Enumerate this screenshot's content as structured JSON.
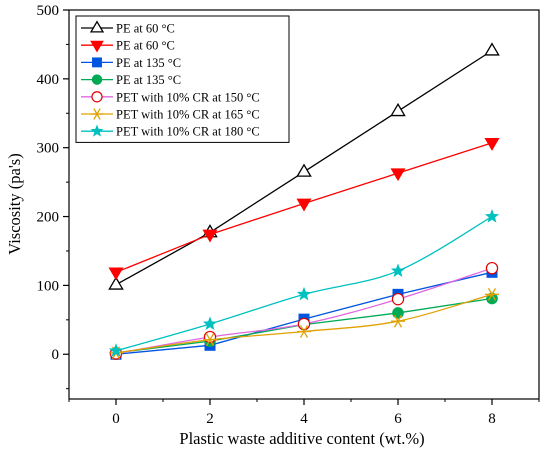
{
  "chart_data": {
    "type": "line",
    "xlabel": "Plastic waste additive content (wt.%)",
    "ylabel": "Viscosity (pa's)",
    "xlim": [
      -1,
      9
    ],
    "ylim": [
      -65,
      500
    ],
    "xticks": [
      0,
      2,
      4,
      6,
      8
    ],
    "yticks": [
      0,
      100,
      200,
      300,
      400,
      500
    ],
    "grid": false,
    "legend_position": "top-left",
    "x": [
      0,
      2,
      4,
      6,
      8
    ],
    "series": [
      {
        "name": "PE  at 60 °C",
        "values": [
          101,
          177,
          265,
          353,
          441
        ],
        "color": "#000000",
        "marker": "triangle-up-open",
        "curve": "linear"
      },
      {
        "name": "PE  at 60 °C",
        "values": [
          119,
          174,
          219,
          263,
          307
        ],
        "color": "#ff0000",
        "marker": "triangle-down-filled",
        "curve": "linear"
      },
      {
        "name": "PE at 135 °C",
        "values": [
          0,
          13,
          51,
          87,
          119
        ],
        "color": "#0055e0",
        "marker": "square-filled",
        "curve": "linear"
      },
      {
        "name": "PE  at 135 °C",
        "values": [
          2,
          19,
          43,
          60,
          81
        ],
        "color": "#00aa55",
        "marker": "circle-filled",
        "curve": "linear"
      },
      {
        "name": "PET with 10% CR at 150 °C",
        "values": [
          1,
          25,
          44,
          80,
          125
        ],
        "color": "#e066e0",
        "line_color": "#e066e0",
        "marker_color": "#e00000",
        "marker": "circle-open",
        "curve": "smooth"
      },
      {
        "name": "PET with 10% CR at 165 °C",
        "values": [
          2,
          21,
          33,
          48,
          87
        ],
        "color": "#e0a000",
        "marker": "star-asterisk",
        "curve": "smooth"
      },
      {
        "name": "PET with 10% CR at 180 °C",
        "values": [
          5,
          44,
          87,
          121,
          200
        ],
        "color": "#00c0c0",
        "marker": "star-filled",
        "curve": "smooth"
      }
    ]
  }
}
